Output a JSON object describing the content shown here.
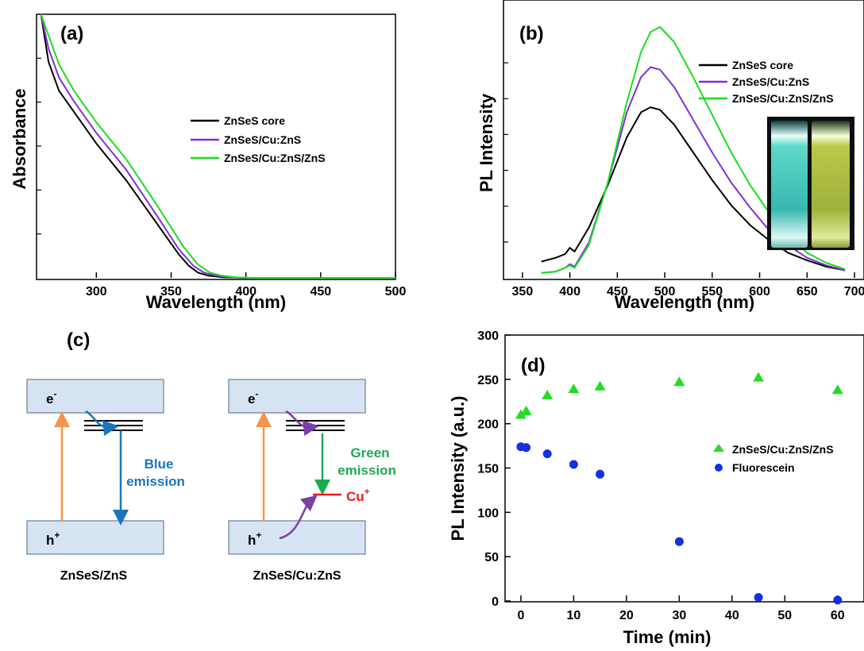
{
  "colors": {
    "black": "#000000",
    "purple": "#7F2FD8",
    "green": "#19E019",
    "band_fill": "#D6E3F2",
    "band_stroke": "#6E7D93",
    "orange": "#F2964A",
    "blue_arrow": "#1B75BB",
    "blue_text": "#1B75BB",
    "green_text": "#1DAA52",
    "cu_red": "#EE1C1C",
    "violet_arrow": "#7B3FA8",
    "marker_green": "#22DD22",
    "marker_blue": "#1530E0"
  },
  "chart_data": [
    {
      "panel": "(a)",
      "type": "line",
      "xlabel": "Wavelength (nm)",
      "ylabel": "Absorbance",
      "xlim": [
        260,
        500
      ],
      "ylim": [
        0,
        1
      ],
      "xticks": [
        300,
        350,
        400,
        450,
        500
      ],
      "series": [
        {
          "name": "ZnSeS core",
          "color": "#000000",
          "x": [
            263,
            268,
            275,
            285,
            300,
            320,
            340,
            355,
            362,
            368,
            375,
            385,
            400,
            500
          ],
          "y": [
            1.0,
            0.82,
            0.71,
            0.63,
            0.51,
            0.37,
            0.21,
            0.09,
            0.045,
            0.02,
            0.008,
            0.002,
            0.0,
            0.0
          ]
        },
        {
          "name": "ZnSeS/Cu:ZnS",
          "color": "#7F2FD8",
          "x": [
            263,
            268,
            275,
            285,
            300,
            320,
            340,
            355,
            365,
            372,
            380,
            390,
            400,
            500
          ],
          "y": [
            1.0,
            0.87,
            0.76,
            0.67,
            0.55,
            0.41,
            0.24,
            0.11,
            0.045,
            0.02,
            0.008,
            0.002,
            0.0,
            0.0
          ]
        },
        {
          "name": "ZnSeS/Cu:ZnS/ZnS",
          "color": "#19E019",
          "x": [
            263,
            268,
            275,
            285,
            300,
            320,
            340,
            358,
            368,
            376,
            384,
            393,
            403,
            500
          ],
          "y": [
            1.0,
            0.92,
            0.81,
            0.71,
            0.59,
            0.45,
            0.28,
            0.12,
            0.05,
            0.02,
            0.008,
            0.002,
            0.0,
            0.0
          ]
        }
      ]
    },
    {
      "panel": "(b)",
      "type": "line",
      "xlabel": "Wavelength (nm)",
      "ylabel": "PL Intensity",
      "xlim": [
        330,
        710
      ],
      "ylim": [
        0,
        1
      ],
      "xticks": [
        350,
        400,
        450,
        500,
        550,
        600,
        650,
        700
      ],
      "series": [
        {
          "name": "ZnSeS core",
          "color": "#000000",
          "x": [
            370,
            385,
            395,
            400,
            405,
            420,
            440,
            460,
            475,
            485,
            495,
            510,
            530,
            550,
            570,
            590,
            610,
            630,
            650,
            670,
            690
          ],
          "y": [
            0.065,
            0.08,
            0.095,
            0.12,
            0.105,
            0.2,
            0.37,
            0.56,
            0.66,
            0.68,
            0.67,
            0.61,
            0.5,
            0.39,
            0.29,
            0.21,
            0.15,
            0.1,
            0.07,
            0.045,
            0.03
          ]
        },
        {
          "name": "ZnSeS/Cu:ZnS",
          "color": "#7F2FD8",
          "x": [
            370,
            385,
            395,
            400,
            405,
            420,
            440,
            460,
            475,
            485,
            495,
            510,
            530,
            550,
            570,
            590,
            610,
            630,
            650,
            670,
            690
          ],
          "y": [
            0.02,
            0.025,
            0.04,
            0.055,
            0.045,
            0.14,
            0.38,
            0.66,
            0.8,
            0.84,
            0.83,
            0.76,
            0.63,
            0.5,
            0.38,
            0.28,
            0.19,
            0.13,
            0.08,
            0.05,
            0.03
          ]
        },
        {
          "name": "ZnSeS/Cu:ZnS/ZnS",
          "color": "#19E019",
          "x": [
            370,
            385,
            395,
            400,
            405,
            420,
            440,
            460,
            475,
            485,
            495,
            510,
            530,
            550,
            570,
            590,
            610,
            630,
            650,
            670,
            690
          ],
          "y": [
            0.02,
            0.025,
            0.04,
            0.05,
            0.04,
            0.13,
            0.38,
            0.7,
            0.9,
            0.98,
            1.0,
            0.94,
            0.8,
            0.65,
            0.5,
            0.37,
            0.26,
            0.17,
            0.1,
            0.06,
            0.035
          ]
        }
      ]
    },
    {
      "panel": "(d)",
      "type": "scatter",
      "xlabel": "Time (min)",
      "ylabel": "PL Intensity (a.u.)",
      "xlim": [
        -3,
        65
      ],
      "ylim": [
        0,
        300
      ],
      "xticks": [
        0,
        10,
        20,
        30,
        40,
        50,
        60
      ],
      "yticks": [
        0,
        50,
        100,
        150,
        200,
        250,
        300
      ],
      "series": [
        {
          "name": "ZnSeS/Cu:ZnS/ZnS",
          "marker": "triangle",
          "color": "#22DD22",
          "x": [
            0,
            1,
            5,
            10,
            15,
            30,
            45,
            60
          ],
          "y": [
            210,
            214,
            232,
            239,
            242,
            247,
            252,
            238
          ]
        },
        {
          "name": "Fluorescein",
          "marker": "circle",
          "color": "#1530E0",
          "x": [
            0,
            1,
            5,
            10,
            15,
            30,
            45,
            60
          ],
          "y": [
            174,
            173,
            166,
            154,
            143,
            67,
            4,
            1
          ]
        }
      ]
    }
  ],
  "diagram": {
    "panel": "(c)",
    "left": {
      "cb_label": "e",
      "cb_sup": "-",
      "vb_label": "h",
      "vb_sup": "+",
      "emission_line1": "Blue",
      "emission_line2": "emission",
      "caption": "ZnSeS/ZnS"
    },
    "right": {
      "cb_label": "e",
      "cb_sup": "-",
      "vb_label": "h",
      "vb_sup": "+",
      "emission_line1": "Green",
      "emission_line2": "emission",
      "cu_label": "Cu",
      "cu_sup": "+",
      "caption": "ZnSeS/Cu:ZnS"
    }
  }
}
